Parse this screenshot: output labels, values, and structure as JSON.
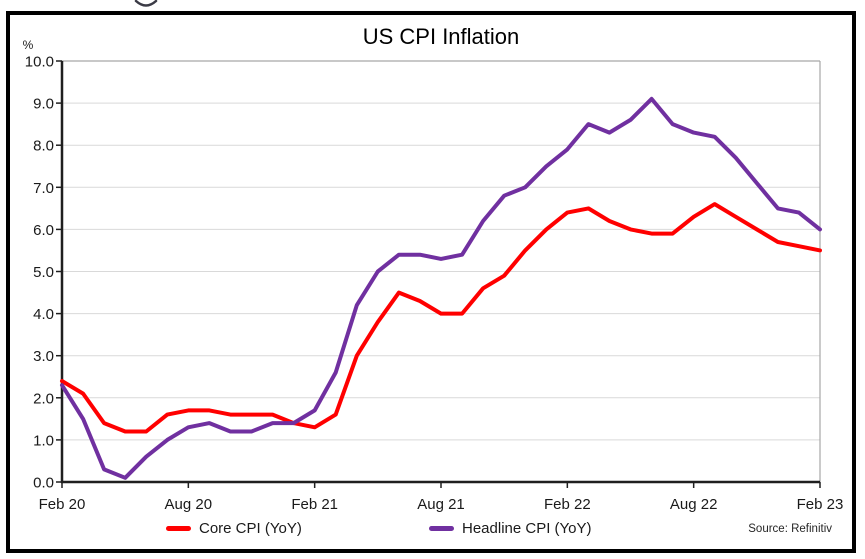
{
  "chart_data": {
    "type": "line",
    "title": "US CPI Inflation",
    "y_axis_unit_label": "%",
    "ylim": [
      0,
      10
    ],
    "y_step": 1,
    "grid": true,
    "legend_position": "bottom",
    "source_note": "Source: Refinitiv",
    "x_categories": [
      "Feb 20",
      "Mar 20",
      "Apr 20",
      "May 20",
      "Jun 20",
      "Jul 20",
      "Aug 20",
      "Sep 20",
      "Oct 20",
      "Nov 20",
      "Dec 20",
      "Jan 21",
      "Feb 21",
      "Mar 21",
      "Apr 21",
      "May 21",
      "Jun 21",
      "Jul 21",
      "Aug 21",
      "Sep 21",
      "Oct 21",
      "Nov 21",
      "Dec 21",
      "Jan 22",
      "Feb 22",
      "Mar 22",
      "Apr 22",
      "May 22",
      "Jun 22",
      "Jul 22",
      "Aug 22",
      "Sep 22",
      "Oct 22",
      "Nov 22",
      "Dec 22",
      "Jan 23",
      "Feb 23"
    ],
    "x_tick_labels": [
      "Feb 20",
      "Aug 20",
      "Feb 21",
      "Aug 21",
      "Feb 22",
      "Aug 22",
      "Feb 23"
    ],
    "y_tick_labels": [
      "10.0",
      "9.0",
      "8.0",
      "7.0",
      "6.0",
      "5.0",
      "4.0",
      "3.0",
      "2.0",
      "1.0",
      "0.0"
    ],
    "series": [
      {
        "name": "Core CPI (YoY)",
        "color": "#FF0000",
        "values": [
          2.4,
          2.1,
          1.4,
          1.2,
          1.2,
          1.6,
          1.7,
          1.7,
          1.6,
          1.6,
          1.6,
          1.4,
          1.3,
          1.6,
          3.0,
          3.8,
          4.5,
          4.3,
          4.0,
          4.0,
          4.6,
          4.9,
          5.5,
          6.0,
          6.4,
          6.5,
          6.2,
          6.0,
          5.9,
          5.9,
          6.3,
          6.6,
          6.3,
          6.0,
          5.7,
          5.6,
          5.5
        ]
      },
      {
        "name": "Headline CPI (YoY)",
        "color": "#7030A0",
        "values": [
          2.3,
          1.5,
          0.3,
          0.1,
          0.6,
          1.0,
          1.3,
          1.4,
          1.2,
          1.2,
          1.4,
          1.4,
          1.7,
          2.6,
          4.2,
          5.0,
          5.4,
          5.4,
          5.3,
          5.4,
          6.2,
          6.8,
          7.0,
          7.5,
          7.9,
          8.5,
          8.3,
          8.6,
          9.1,
          8.5,
          8.3,
          8.2,
          7.7,
          7.1,
          6.5,
          6.4,
          6.0
        ]
      }
    ]
  },
  "colors": {
    "grid": "#D9D9D9",
    "plot_border": "#A6A6A6",
    "axis": "#1f1f1f",
    "tick_text": "#1a1a1a",
    "outer_border": "#000000",
    "cropped_glyph": "#3b3b46"
  }
}
